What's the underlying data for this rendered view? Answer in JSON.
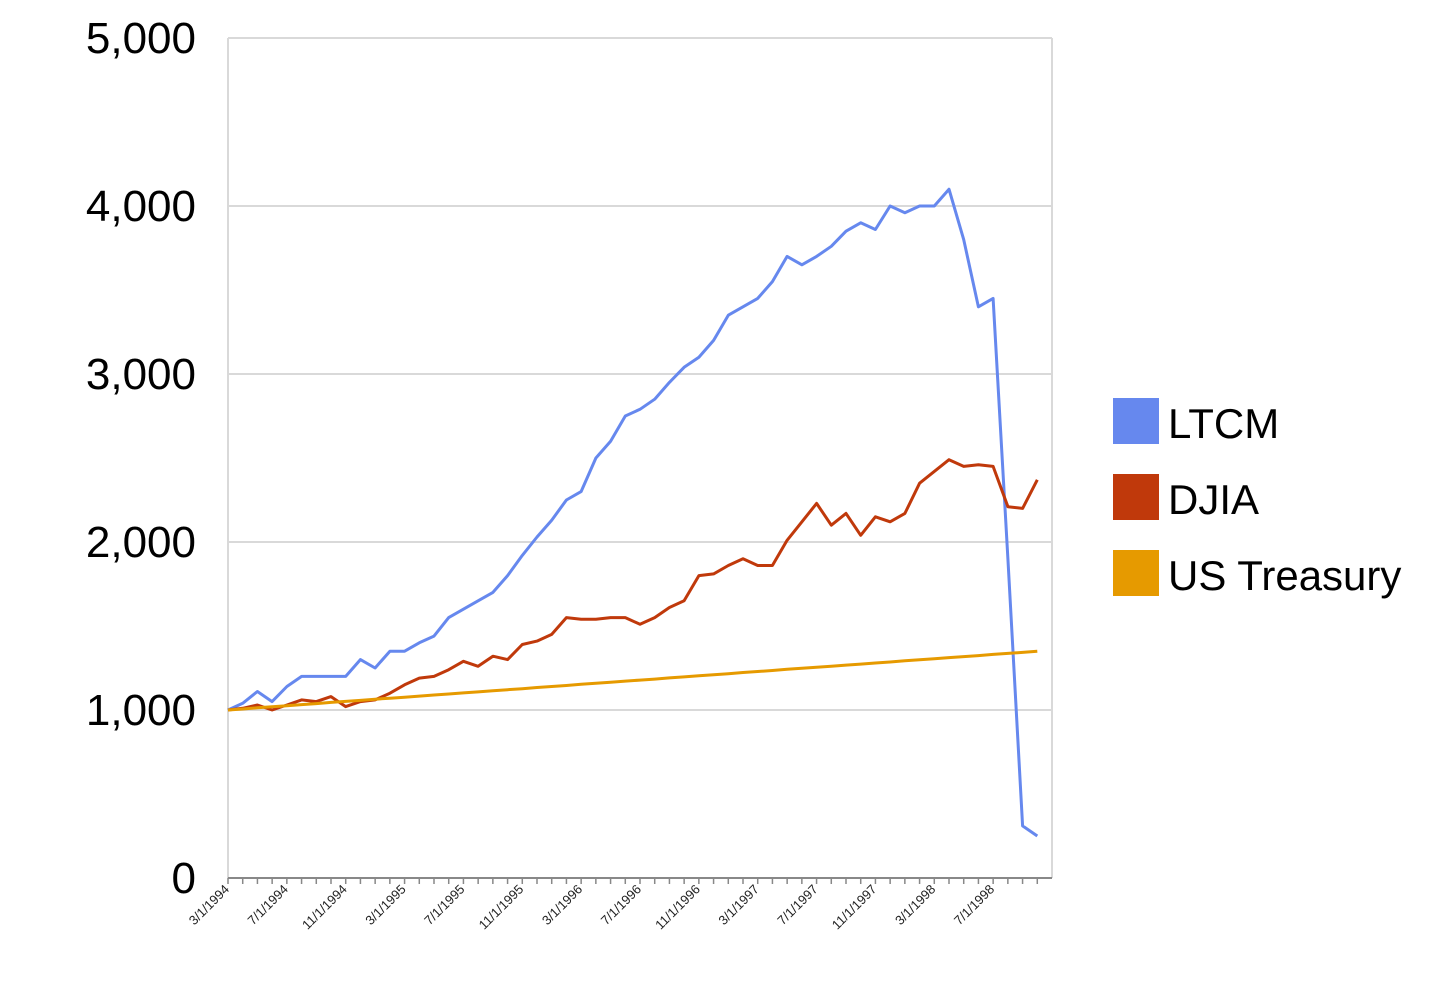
{
  "chart_data": {
    "type": "line",
    "categories": [
      "3/1/1994",
      null,
      null,
      null,
      "7/1/1994",
      null,
      null,
      null,
      "11/1/1994",
      null,
      null,
      null,
      "3/1/1995",
      null,
      null,
      null,
      "7/1/1995",
      null,
      null,
      null,
      "11/1/1995",
      null,
      null,
      null,
      "3/1/1996",
      null,
      null,
      null,
      "7/1/1996",
      null,
      null,
      null,
      "11/1/1996",
      null,
      null,
      null,
      "3/1/1997",
      null,
      null,
      null,
      "7/1/1997",
      null,
      null,
      null,
      "11/1/1997",
      null,
      null,
      null,
      "3/1/1998",
      null,
      null,
      null,
      "7/1/1998",
      null,
      null,
      null
    ],
    "series": [
      {
        "name": "LTCM",
        "color": "#6688ee",
        "values": [
          1000,
          1040,
          1110,
          1050,
          1140,
          1200,
          1200,
          1200,
          1200,
          1300,
          1250,
          1350,
          1350,
          1400,
          1440,
          1550,
          1600,
          1650,
          1700,
          1800,
          1920,
          2030,
          2130,
          2250,
          2300,
          2500,
          2600,
          2750,
          2790,
          2850,
          2950,
          3040,
          3100,
          3200,
          3350,
          3400,
          3450,
          3550,
          3700,
          3650,
          3700,
          3760,
          3850,
          3900,
          3860,
          4000,
          3960,
          4000,
          4000,
          4100,
          3800,
          3400,
          3450,
          1900,
          310,
          250
        ]
      },
      {
        "name": "DJIA",
        "color": "#c0390b",
        "values": [
          1000,
          1010,
          1030,
          1000,
          1030,
          1060,
          1050,
          1080,
          1020,
          1050,
          1060,
          1100,
          1150,
          1190,
          1200,
          1240,
          1290,
          1260,
          1320,
          1300,
          1390,
          1410,
          1450,
          1550,
          1540,
          1540,
          1550,
          1550,
          1510,
          1550,
          1610,
          1650,
          1800,
          1810,
          1860,
          1900,
          1860,
          1860,
          2010,
          2120,
          2230,
          2100,
          2170,
          2040,
          2150,
          2120,
          2170,
          2350,
          2420,
          2490,
          2450,
          2460,
          2450,
          2210,
          2200,
          2370
        ]
      },
      {
        "name": "US Treasury",
        "color": "#e69a00",
        "values": [
          1000,
          1006,
          1013,
          1019,
          1025,
          1032,
          1038,
          1045,
          1051,
          1057,
          1064,
          1070,
          1076,
          1083,
          1089,
          1095,
          1102,
          1108,
          1114,
          1121,
          1127,
          1134,
          1140,
          1146,
          1153,
          1159,
          1165,
          1172,
          1178,
          1184,
          1191,
          1197,
          1204,
          1210,
          1216,
          1223,
          1229,
          1235,
          1242,
          1248,
          1254,
          1261,
          1267,
          1273,
          1280,
          1286,
          1293,
          1299,
          1305,
          1312,
          1318,
          1324,
          1331,
          1337,
          1343,
          1350
        ]
      }
    ],
    "ylim": [
      0,
      5000
    ],
    "yticks": [
      0,
      {
        "value": 1000,
        "label": "1,000"
      },
      {
        "value": 2000,
        "label": "2,000"
      },
      {
        "value": 3000,
        "label": "3,000"
      },
      {
        "value": 4000,
        "label": "4,000"
      },
      {
        "value": 5000,
        "label": "5,000"
      }
    ],
    "grid": true,
    "legend": "right"
  }
}
